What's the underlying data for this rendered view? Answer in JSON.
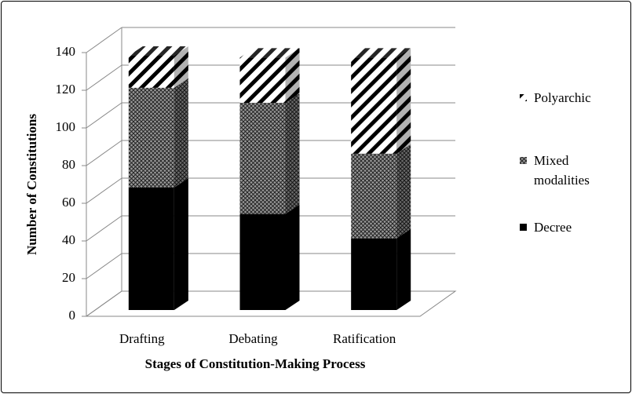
{
  "chart_data": {
    "type": "bar3d_stacked",
    "x_label": "Stages of Constitution-Making Process",
    "y_label": "Number of Constitutions",
    "categories": [
      "Drafting",
      "Debating",
      "Ratification"
    ],
    "series": [
      {
        "name": "Decree",
        "color": "#000000",
        "pattern": "solid",
        "values": [
          65,
          51,
          38
        ]
      },
      {
        "name": "Mixed modalities",
        "color": "#808080",
        "pattern": "crosshatch",
        "values": [
          53,
          59,
          45
        ]
      },
      {
        "name": "Polyarchic",
        "color": "#ffffff",
        "pattern": "diagonal",
        "values": [
          17,
          24,
          51
        ]
      }
    ],
    "ylim": [
      0,
      140
    ],
    "yticks": [
      0,
      20,
      40,
      60,
      80,
      100,
      120,
      140
    ],
    "grid": true,
    "legend": "right"
  }
}
